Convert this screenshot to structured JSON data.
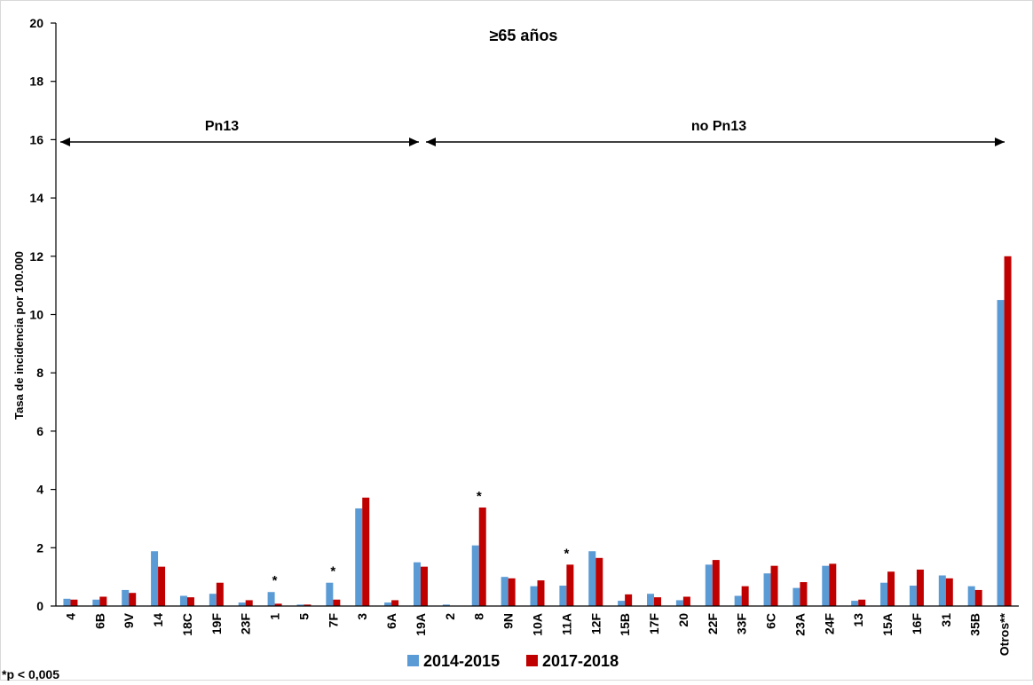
{
  "chart_data": {
    "type": "bar",
    "title": "≥65 años",
    "ylabel": "Tasa de incidencia por 100.000",
    "xlabel": "",
    "ylim": [
      0,
      20
    ],
    "yticks": [
      0,
      2,
      4,
      6,
      8,
      10,
      12,
      14,
      16,
      18,
      20
    ],
    "grid": false,
    "legend_position": "bottom-center",
    "categories": [
      "4",
      "6B",
      "9V",
      "14",
      "18C",
      "19F",
      "23F",
      "1",
      "5",
      "7F",
      "3",
      "6A",
      "19A",
      "2",
      "8",
      "9N",
      "10A",
      "11A",
      "12F",
      "15B",
      "17F",
      "20",
      "22F",
      "33F",
      "6C",
      "23A",
      "24F",
      "13",
      "15A",
      "16F",
      "31",
      "35B",
      "Otros**"
    ],
    "series": [
      {
        "name": "2014-2015",
        "color": "#5B9BD5",
        "values": [
          0.25,
          0.22,
          0.55,
          1.88,
          0.35,
          0.42,
          0.12,
          0.48,
          0.05,
          0.8,
          3.35,
          0.12,
          1.5,
          0.05,
          2.08,
          1.0,
          0.68,
          0.7,
          1.88,
          0.18,
          0.42,
          0.2,
          1.42,
          0.35,
          1.12,
          0.62,
          1.38,
          0.18,
          0.8,
          0.7,
          1.05,
          0.68,
          10.5
        ]
      },
      {
        "name": "2017-2018",
        "color": "#C00000",
        "values": [
          0.22,
          0.32,
          0.45,
          1.35,
          0.3,
          0.8,
          0.2,
          0.08,
          0.05,
          0.22,
          3.72,
          0.2,
          1.35,
          0.0,
          3.38,
          0.95,
          0.88,
          1.42,
          1.65,
          0.4,
          0.3,
          0.32,
          1.58,
          0.68,
          1.38,
          0.82,
          1.45,
          0.22,
          1.18,
          1.25,
          0.95,
          0.55,
          12.0
        ]
      }
    ],
    "significant_categories": [
      "1",
      "7F",
      "8",
      "11A"
    ],
    "significance_mark": "*",
    "groups": [
      {
        "label": "Pn13",
        "from": "4",
        "to": "19A"
      },
      {
        "label": "no Pn13",
        "from": "2",
        "to": "Otros**"
      }
    ],
    "footnote": "*p < 0,005"
  }
}
